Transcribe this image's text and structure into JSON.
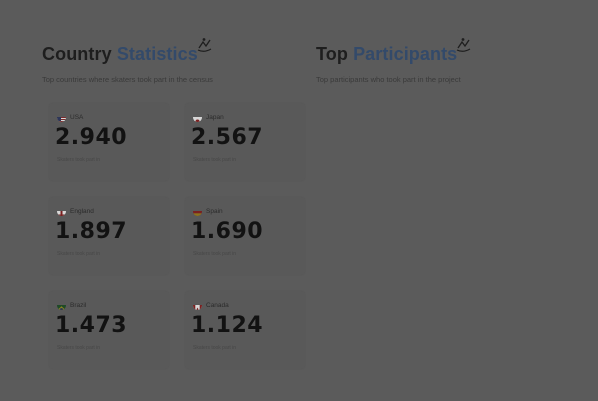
{
  "country_stats": {
    "title_part1": "Country",
    "title_part2": "Statistics",
    "subtitle": "Top countries where skaters took part in the census",
    "doodle_icon": "skater-doodle-icon",
    "cards": [
      {
        "country": "USA",
        "value": "2.940",
        "caption": "Skaters took part in",
        "flag": "usa-flag-icon"
      },
      {
        "country": "Japan",
        "value": "2.567",
        "caption": "Skaters took part in",
        "flag": "japan-flag-icon"
      },
      {
        "country": "England",
        "value": "1.897",
        "caption": "Skaters took part in",
        "flag": "england-flag-icon"
      },
      {
        "country": "Spain",
        "value": "1.690",
        "caption": "Skaters took part in",
        "flag": "spain-flag-icon"
      },
      {
        "country": "Brazil",
        "value": "1.473",
        "caption": "Skaters took part in",
        "flag": "brazil-flag-icon"
      },
      {
        "country": "Canada",
        "value": "1.124",
        "caption": "Skaters took part in",
        "flag": "canada-flag-icon"
      }
    ]
  },
  "top_participants": {
    "title_part1": "Top",
    "title_part2": "Participants",
    "subtitle": "Top participants who took part in the project",
    "doodle_icon": "skater-doodle-icon"
  },
  "colors": {
    "overlay_background": "#5b5b5b",
    "card_background": "#595959",
    "accent": "#334a6a",
    "text": "#1e1e1e"
  }
}
